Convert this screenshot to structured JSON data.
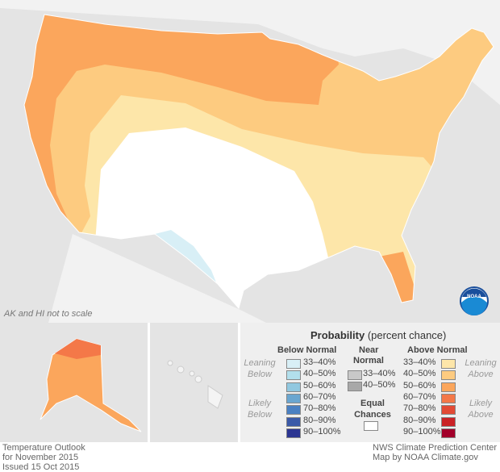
{
  "map": {
    "note": "AK and HI not to scale",
    "logo_text": "NOAA"
  },
  "legend": {
    "title": "Probability",
    "title_suffix": "(percent chance)",
    "below_header": "Below Normal",
    "near_header_1": "Near",
    "near_header_2": "Normal",
    "above_header": "Above Normal",
    "leaning_below": [
      "Leaning",
      "Below"
    ],
    "likely_below": [
      "Likely",
      "Below"
    ],
    "leaning_above": [
      "Leaning",
      "Above"
    ],
    "likely_above": [
      "Likely",
      "Above"
    ],
    "equal_chances": [
      "Equal",
      "Chances"
    ],
    "below": [
      {
        "label": "33–40%",
        "color": "#d8eff6"
      },
      {
        "label": "40–50%",
        "color": "#b2dfec"
      },
      {
        "label": "50–60%",
        "color": "#91c8e0"
      },
      {
        "label": "60–70%",
        "color": "#6aa6d0"
      },
      {
        "label": "70–80%",
        "color": "#4a80c2"
      },
      {
        "label": "80–90%",
        "color": "#3b5aa8"
      },
      {
        "label": "90–100%",
        "color": "#2b3592"
      }
    ],
    "near": [
      {
        "label": "33–40%",
        "color": "#c8c8c8"
      },
      {
        "label": "40–50%",
        "color": "#a8a8a8"
      }
    ],
    "above": [
      {
        "label": "33–40%",
        "color": "#fde6a9"
      },
      {
        "label": "40–50%",
        "color": "#fdcb80"
      },
      {
        "label": "50–60%",
        "color": "#fba65c"
      },
      {
        "label": "60–70%",
        "color": "#f47848"
      },
      {
        "label": "70–80%",
        "color": "#e24a35"
      },
      {
        "label": "80–90%",
        "color": "#ca2226"
      },
      {
        "label": "90–100%",
        "color": "#a2002a"
      }
    ]
  },
  "footer": {
    "left": [
      "Temperature Outlook",
      "for November 2015",
      "Issued 15 Oct 2015"
    ],
    "right": [
      "NWS Climate Prediction Center",
      "Map by NOAA Climate.gov"
    ]
  }
}
